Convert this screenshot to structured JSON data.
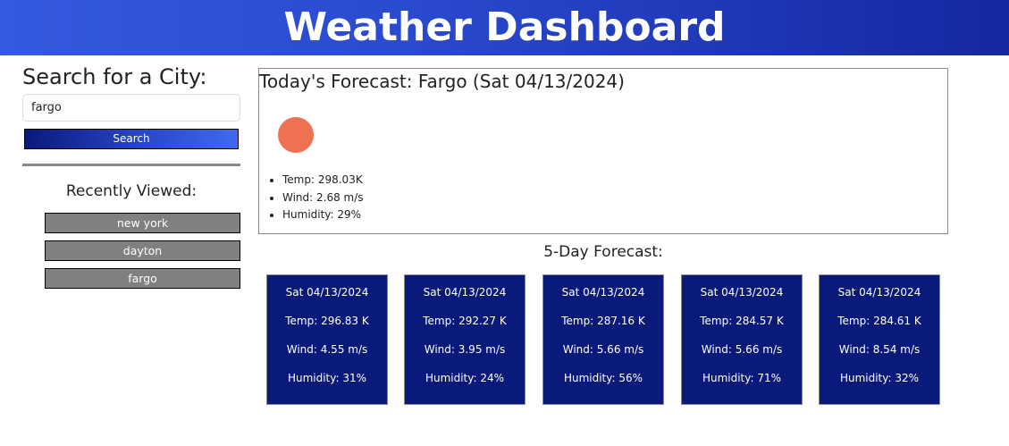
{
  "header": {
    "title": "Weather Dashboard"
  },
  "sidebar": {
    "search_title": "Search for a City:",
    "search_value": "fargo",
    "search_button": "Search",
    "recent_title": "Recently Viewed:",
    "recent": [
      "new york",
      "dayton",
      "fargo"
    ]
  },
  "today": {
    "title": "Today's Forecast: Fargo (Sat 04/13/2024)",
    "icon": "sun-icon",
    "icon_color": "#ee7151",
    "temp": "Temp: 298.03K",
    "wind": "Wind: 2.68 m/s",
    "humidity": "Humidity: 29%"
  },
  "five_day": {
    "title": "5-Day Forecast:",
    "cards": [
      {
        "date": "Sat 04/13/2024",
        "temp": "Temp: 296.83 K",
        "wind": "Wind: 4.55 m/s",
        "humidity": "Humidity: 31%"
      },
      {
        "date": "Sat 04/13/2024",
        "temp": "Temp: 292.27 K",
        "wind": "Wind: 3.95 m/s",
        "humidity": "Humidity: 24%"
      },
      {
        "date": "Sat 04/13/2024",
        "temp": "Temp: 287.16 K",
        "wind": "Wind: 5.66 m/s",
        "humidity": "Humidity: 56%"
      },
      {
        "date": "Sat 04/13/2024",
        "temp": "Temp: 284.57 K",
        "wind": "Wind: 5.66 m/s",
        "humidity": "Humidity: 71%"
      },
      {
        "date": "Sat 04/13/2024",
        "temp": "Temp: 284.61 K",
        "wind": "Wind: 8.54 m/s",
        "humidity": "Humidity: 32%"
      }
    ]
  },
  "colors": {
    "header_start": "#3559e0",
    "header_end": "#1428a0",
    "card_bg": "#0a1a7a",
    "recent_bg": "#808080"
  }
}
